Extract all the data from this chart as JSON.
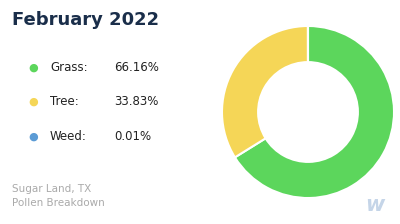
{
  "title": "February 2022",
  "title_color": "#1a2e4a",
  "title_fontsize": 13,
  "title_fontweight": "bold",
  "subtitle": "Sugar Land, TX\nPollen Breakdown",
  "subtitle_color": "#aaaaaa",
  "subtitle_fontsize": 7.5,
  "slices": [
    66.16,
    33.83,
    0.01
  ],
  "labels": [
    "Grass",
    "Tree",
    "Weed"
  ],
  "percentages": [
    "66.16%",
    "33.83%",
    "0.01%"
  ],
  "colors": [
    "#5cd65c",
    "#f5d657",
    "#5b9bd5"
  ],
  "background_color": "#ffffff",
  "donut_width": 0.42,
  "startangle": 90,
  "legend_fontsize": 8.5,
  "legend_label_color": "#222222",
  "legend_pct_color": "#222222",
  "watermark_color": "#c5d5e8"
}
